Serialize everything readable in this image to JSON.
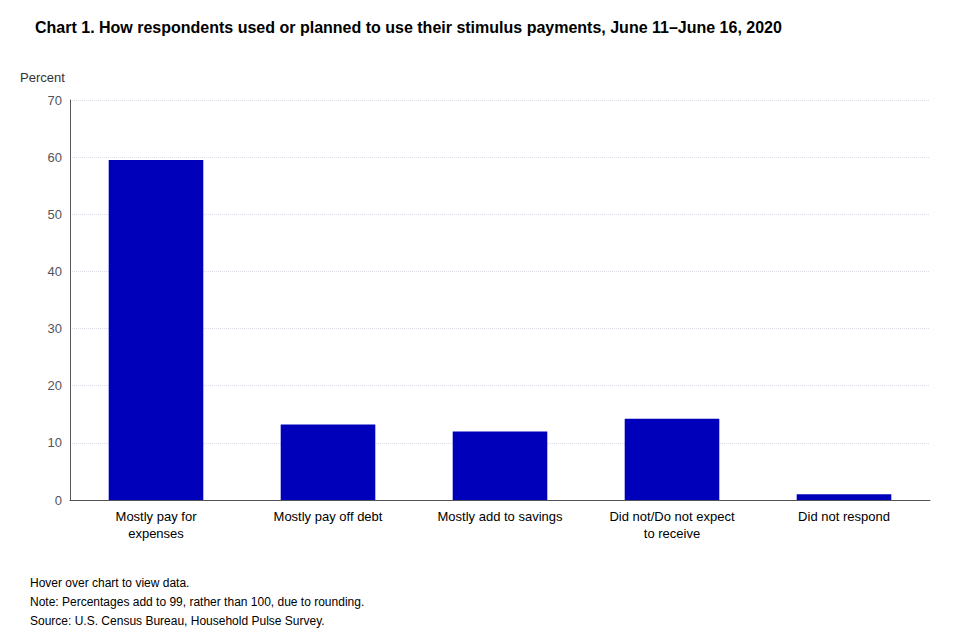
{
  "chart_data": {
    "type": "bar",
    "title": "Chart 1. How respondents used or planned to use their stimulus payments, June 11–June 16, 2020",
    "ylabel": "Percent",
    "categories": [
      "Mostly pay for\nexpenses",
      "Mostly pay off debt",
      "Mostly add to savings",
      "Did not/Do not expect\nto receive",
      "Did not respond"
    ],
    "values": [
      59.5,
      13.2,
      12.0,
      14.2,
      1.0
    ],
    "color": "#0000BB",
    "ylim": [
      0,
      70
    ],
    "yticks": [
      0,
      10,
      20,
      30,
      40,
      50,
      60,
      70
    ],
    "grid": true,
    "annotations": [
      "Hover over chart to view data.",
      "Note: Percentages add to 99, rather than 100, due to rounding.",
      "Source: U.S. Census Bureau, Household Pulse Survey."
    ]
  }
}
